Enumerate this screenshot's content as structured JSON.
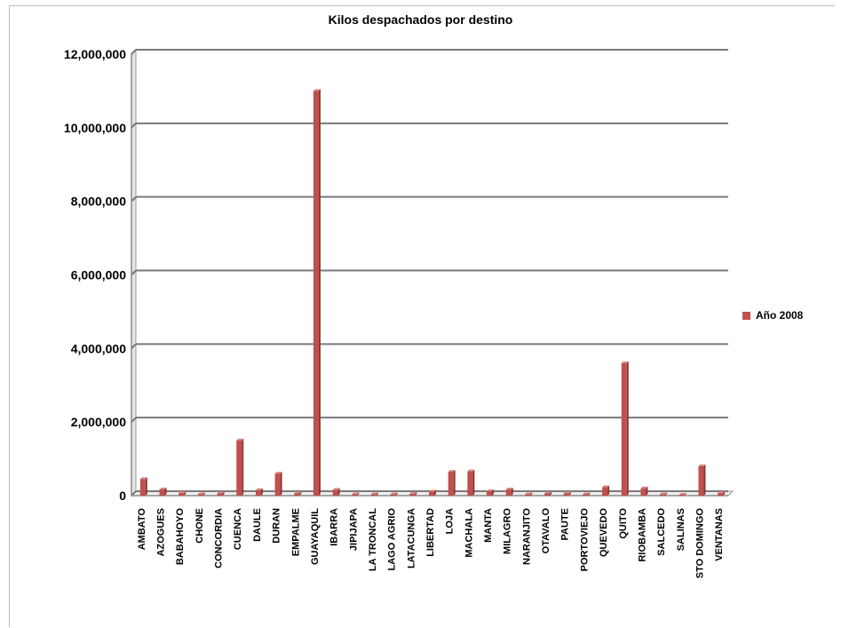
{
  "chart_data": {
    "type": "bar",
    "title": "Kilos despachados por destino",
    "xlabel": "",
    "ylabel": "",
    "ylim": [
      0,
      12000000
    ],
    "yticks": [
      "0",
      "2,000,000",
      "4,000,000",
      "6,000,000",
      "8,000,000",
      "10,000,000",
      "12,000,000"
    ],
    "grid": true,
    "legend_position": "right",
    "categories": [
      "AMBATO",
      "AZOGUES",
      "BABAHOYO",
      "CHONE",
      "CONCORDIA",
      "CUENCA",
      "DAULE",
      "DURAN",
      "EMPALME",
      "GUAYAQUIL",
      "IBARRA",
      "JIPIJAPA",
      "LA TRONCAL",
      "LAGO AGRIO",
      "LATACUNGA",
      "LIBERTAD",
      "LOJA",
      "MACHALA",
      "MANTA",
      "MILAGRO",
      "NARANJITO",
      "OTAVALO",
      "PAUTE",
      "PORTOVIEJO",
      "QUEVEDO",
      "QUITO",
      "RIOBAMBA",
      "SALCEDO",
      "SALINAS",
      "STO DOMINGO",
      "VENTANAS"
    ],
    "series": [
      {
        "name": "Año 2008",
        "color": "#c0504d",
        "values": [
          450000,
          170000,
          70000,
          40000,
          60000,
          1500000,
          150000,
          600000,
          60000,
          11000000,
          160000,
          40000,
          40000,
          40000,
          50000,
          110000,
          650000,
          660000,
          120000,
          170000,
          40000,
          60000,
          60000,
          40000,
          230000,
          3600000,
          200000,
          40000,
          25000,
          800000,
          70000
        ]
      }
    ]
  }
}
